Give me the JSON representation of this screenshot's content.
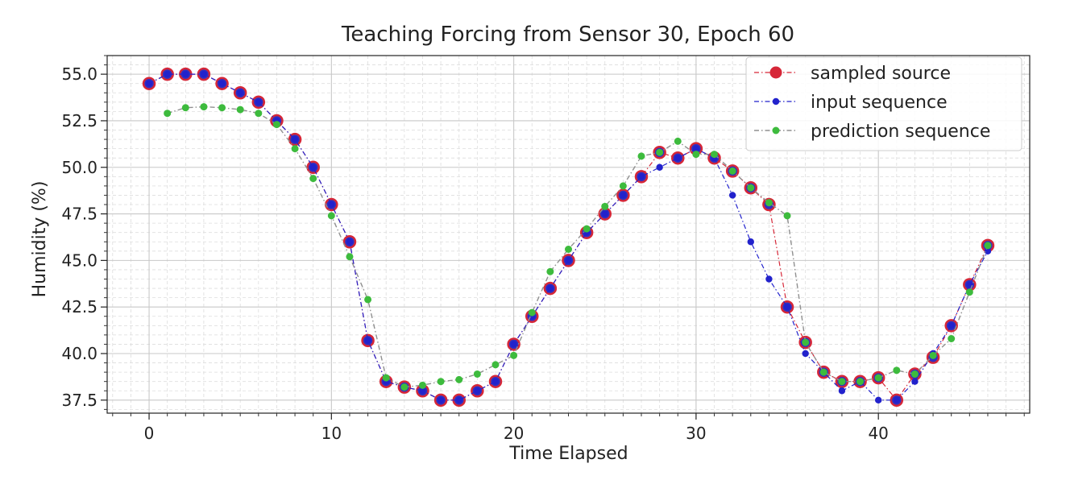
{
  "chart_data": {
    "type": "line",
    "title": "Teaching Forcing from Sensor 30, Epoch 60",
    "xlabel": "Time Elapsed",
    "ylabel": "Humidity (%)",
    "xlim": [
      -2.3,
      48.3
    ],
    "ylim": [
      36.8,
      56.0
    ],
    "xticks": [
      0,
      10,
      20,
      30,
      40
    ],
    "xtick_labels": [
      "0",
      "10",
      "20",
      "30",
      "40"
    ],
    "yticks": [
      37.5,
      40.0,
      42.5,
      45.0,
      47.5,
      50.0,
      52.5,
      55.0
    ],
    "ytick_labels": [
      "37.5",
      "40.0",
      "42.5",
      "45.0",
      "47.5",
      "50.0",
      "52.5",
      "55.0"
    ],
    "grid": true,
    "minor_grid": true,
    "legend_position": "upper right",
    "series": [
      {
        "name": "sampled source",
        "color": "#d62738",
        "x": [
          0,
          1,
          2,
          3,
          4,
          5,
          6,
          7,
          8,
          9,
          10,
          11,
          12,
          13,
          14,
          15,
          16,
          17,
          18,
          19,
          20,
          21,
          22,
          23,
          24,
          25,
          26,
          27,
          28,
          29,
          30,
          31,
          32,
          33,
          34,
          35,
          36,
          37,
          38,
          39,
          40,
          41,
          42,
          43,
          44,
          45,
          46
        ],
        "values": [
          54.5,
          55.0,
          55.0,
          55.0,
          54.5,
          54.0,
          53.5,
          52.5,
          51.5,
          50.0,
          48.0,
          46.0,
          40.7,
          38.5,
          38.2,
          38.0,
          37.5,
          37.5,
          38.0,
          38.5,
          40.5,
          42.0,
          43.5,
          45.0,
          46.5,
          47.5,
          48.5,
          49.5,
          50.8,
          50.5,
          51.0,
          50.5,
          49.8,
          48.9,
          48.0,
          42.5,
          40.6,
          39.0,
          38.5,
          38.5,
          38.7,
          37.5,
          38.9,
          39.8,
          41.5,
          43.7,
          45.8
        ]
      },
      {
        "name": "input sequence",
        "color": "#2222cc",
        "x": [
          0,
          1,
          2,
          3,
          4,
          5,
          6,
          7,
          8,
          9,
          10,
          11,
          12,
          13,
          14,
          15,
          16,
          17,
          18,
          19,
          20,
          21,
          22,
          23,
          24,
          25,
          26,
          27,
          28,
          29,
          30,
          31,
          32,
          33,
          34,
          35,
          36,
          37,
          38,
          39,
          40,
          41,
          42,
          43,
          44,
          45,
          46
        ],
        "values": [
          54.5,
          55.0,
          55.0,
          55.0,
          54.5,
          54.0,
          53.5,
          52.5,
          51.5,
          50.0,
          48.0,
          46.0,
          40.7,
          38.5,
          38.2,
          38.0,
          37.5,
          37.5,
          38.0,
          38.5,
          40.5,
          42.0,
          43.5,
          45.0,
          46.5,
          47.5,
          48.5,
          49.5,
          50.0,
          50.5,
          51.0,
          50.5,
          48.5,
          46.0,
          44.0,
          42.5,
          40.0,
          39.0,
          38.0,
          38.5,
          37.5,
          37.5,
          38.5,
          40.0,
          41.5,
          43.7,
          45.5
        ]
      },
      {
        "name": "prediction sequence",
        "color": "#3dbb3d",
        "x": [
          1,
          2,
          3,
          4,
          5,
          6,
          7,
          8,
          9,
          10,
          11,
          12,
          13,
          14,
          15,
          16,
          17,
          18,
          19,
          20,
          21,
          22,
          23,
          24,
          25,
          26,
          27,
          28,
          29,
          30,
          31,
          32,
          33,
          34,
          35,
          36,
          37,
          38,
          39,
          40,
          41,
          42,
          43,
          44,
          45,
          46
        ],
        "values": [
          52.9,
          53.2,
          53.25,
          53.2,
          53.1,
          52.9,
          52.3,
          51.0,
          49.4,
          47.4,
          45.2,
          42.9,
          38.7,
          38.2,
          38.3,
          38.5,
          38.6,
          38.9,
          39.4,
          39.9,
          42.2,
          44.4,
          45.6,
          46.7,
          47.9,
          49.0,
          50.6,
          50.8,
          51.4,
          50.7,
          50.7,
          49.8,
          48.9,
          48.1,
          47.4,
          40.6,
          39.0,
          38.5,
          38.5,
          38.7,
          39.1,
          38.9,
          39.9,
          40.8,
          43.3,
          45.8
        ]
      }
    ]
  }
}
